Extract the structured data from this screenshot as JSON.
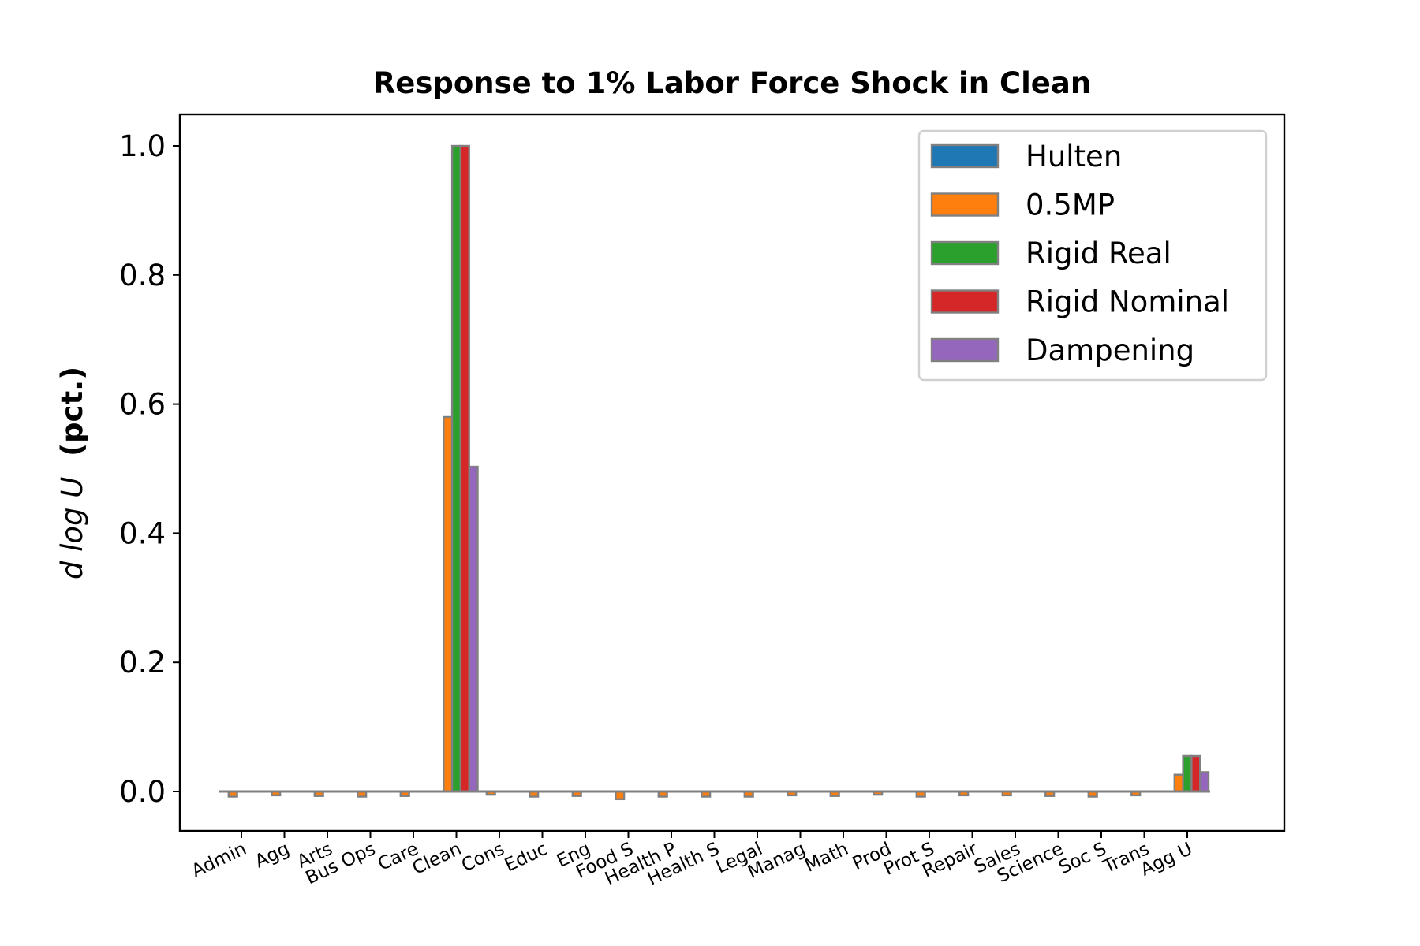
{
  "chart_data": {
    "type": "bar",
    "title": "Response to 1% Labor Force Shock in Clean",
    "ylabel_main": "d log U",
    "ylabel_unit": "(pct.)",
    "xlabel": "",
    "ylim": [
      -0.06,
      1.05
    ],
    "yticks": [
      0.0,
      0.2,
      0.4,
      0.6,
      0.8,
      1.0
    ],
    "ytick_labels": [
      "0.0",
      "0.2",
      "0.4",
      "0.6",
      "0.8",
      "1.0"
    ],
    "grid": false,
    "legend_position": "top-right",
    "categories": [
      "Admin",
      "Agg",
      "Arts",
      "Bus Ops",
      "Care",
      "Clean",
      "Cons",
      "Educ",
      "Eng",
      "Food S",
      "Health P",
      "Health S",
      "Legal",
      "Manag",
      "Math",
      "Prod",
      "Prot S",
      "Repair",
      "Sales",
      "Science",
      "Soc S",
      "Trans",
      "Agg U"
    ],
    "series": [
      {
        "name": "Hulten",
        "color": "#1f77b4",
        "values": [
          0,
          0,
          0,
          0,
          0,
          0,
          0,
          0,
          0,
          0,
          0,
          0,
          0,
          0,
          0,
          0,
          0,
          0,
          0,
          0,
          0,
          0,
          0
        ]
      },
      {
        "name": "0.5MP",
        "color": "#ff7f0e",
        "values": [
          -0.008,
          -0.006,
          -0.007,
          -0.008,
          -0.007,
          0.58,
          -0.005,
          -0.008,
          -0.007,
          -0.012,
          -0.008,
          -0.008,
          -0.008,
          -0.006,
          -0.007,
          -0.005,
          -0.008,
          -0.006,
          -0.006,
          -0.007,
          -0.008,
          -0.006,
          0.026
        ]
      },
      {
        "name": "Rigid Real",
        "color": "#2ca02c",
        "values": [
          0,
          0,
          0,
          0,
          0,
          1.0,
          0,
          0,
          0,
          0,
          0,
          0,
          0,
          0,
          0,
          0,
          0,
          0,
          0,
          0,
          0,
          0,
          0.055
        ]
      },
      {
        "name": "Rigid Nominal",
        "color": "#d62728",
        "values": [
          0,
          0,
          0,
          0,
          0,
          1.0,
          0,
          0,
          0,
          0,
          0,
          0,
          0,
          0,
          0,
          0,
          0,
          0,
          0,
          0,
          0,
          0,
          0.055
        ]
      },
      {
        "name": "Dampening",
        "color": "#9467bd",
        "values": [
          0,
          0,
          0,
          0,
          0,
          0.503,
          0,
          0,
          0,
          0,
          0,
          0,
          0,
          0,
          0,
          0,
          0,
          0,
          0,
          0,
          0,
          0,
          0.03
        ]
      }
    ]
  }
}
